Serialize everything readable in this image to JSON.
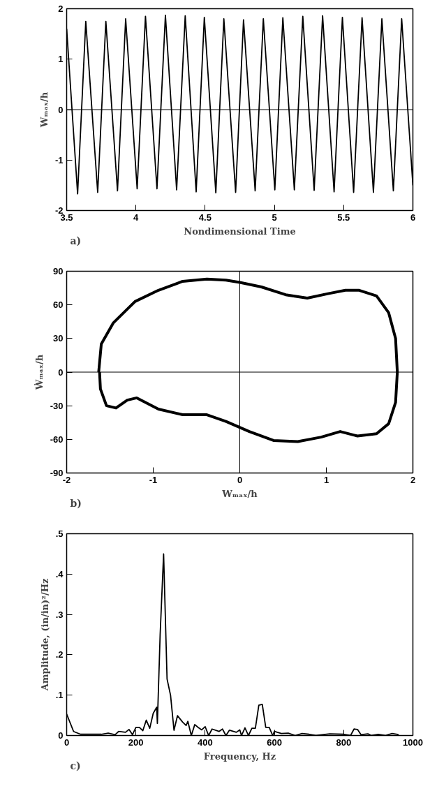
{
  "chart_data": [
    {
      "type": "line",
      "xlabel": "Nondimensional Time",
      "ylabel": "Wₘₐₓ/h",
      "xlim": [
        3.5,
        6
      ],
      "ylim": [
        -2,
        2
      ],
      "xticks": [
        3.5,
        4,
        4.5,
        5,
        5.5,
        6
      ],
      "yticks": [
        -2,
        -1,
        0,
        1,
        2
      ],
      "annotations": [
        "a)"
      ],
      "ref_lines": [
        {
          "axis": "y",
          "value": 0
        }
      ],
      "series": [
        {
          "color": "#000000",
          "x": [
            3.5,
            3.579,
            3.638,
            3.724,
            3.783,
            3.867,
            3.926,
            4.009,
            4.069,
            4.152,
            4.213,
            4.294,
            4.356,
            4.435,
            4.494,
            4.577,
            4.635,
            4.72,
            4.777,
            4.861,
            4.92,
            5.003,
            5.061,
            5.144,
            5.205,
            5.287,
            5.348,
            5.431,
            5.491,
            5.572,
            5.633,
            5.715,
            5.776,
            5.859,
            5.919,
            6
          ],
          "values": [
            1.6,
            -1.67,
            1.75,
            -1.64,
            1.75,
            -1.61,
            1.8,
            -1.57,
            1.85,
            -1.57,
            1.87,
            -1.59,
            1.86,
            -1.63,
            1.83,
            -1.65,
            1.8,
            -1.64,
            1.78,
            -1.61,
            1.8,
            -1.59,
            1.82,
            -1.59,
            1.85,
            -1.6,
            1.86,
            -1.63,
            1.83,
            -1.64,
            1.82,
            -1.64,
            1.8,
            -1.61,
            1.8,
            -1.5
          ]
        }
      ]
    },
    {
      "type": "line",
      "xlabel": "Wₘₐₓ/h",
      "ylabel": "Ẇₘₐₓ/h",
      "xlim": [
        -2,
        2
      ],
      "ylim": [
        -90,
        90
      ],
      "xticks": [
        -2,
        -1,
        0,
        1,
        2
      ],
      "yticks": [
        -90,
        -60,
        -30,
        0,
        30,
        60,
        90
      ],
      "annotations": [
        "b)"
      ],
      "ref_lines": [
        {
          "axis": "x",
          "value": 0
        },
        {
          "axis": "y",
          "value": 0
        }
      ],
      "series": [
        {
          "color": "#000000",
          "x": [
            -1.63,
            -1.6,
            -1.46,
            -1.21,
            -0.94,
            -0.66,
            -0.38,
            -0.16,
            0,
            0.25,
            0.53,
            0.78,
            1.02,
            1.22,
            1.38,
            1.58,
            1.72,
            1.8,
            1.82,
            1.8,
            1.72,
            1.58,
            1.36,
            1.16,
            0.94,
            0.67,
            0.39,
            0.11,
            -0.16,
            -0.38,
            -0.66,
            -0.94,
            -1.19,
            -1.3,
            -1.43,
            -1.54,
            -1.61,
            -1.62
          ],
          "values": [
            0,
            25,
            44,
            63,
            73,
            81,
            83,
            82,
            80,
            76,
            69,
            66,
            70,
            73,
            73,
            68,
            53,
            30,
            0,
            -27,
            -46,
            -55,
            -57,
            -53,
            -58,
            -62,
            -61,
            -53,
            -44,
            -38,
            -38,
            -33,
            -23,
            -25,
            -32,
            -30,
            -15,
            0
          ]
        }
      ]
    },
    {
      "type": "line",
      "xlabel": "Frequency, Hz",
      "ylabel": "Amplitude, (in/in)²/Hz",
      "xlim": [
        0,
        1000
      ],
      "ylim": [
        0,
        0.5
      ],
      "xticks": [
        0,
        200,
        400,
        600,
        800,
        1000
      ],
      "yticks": [
        0,
        {
          "value": 0.1,
          "label": ".1"
        },
        {
          "value": 0.2,
          "label": ".2"
        },
        {
          "value": 0.3,
          "label": ".3"
        },
        {
          "value": 0.4,
          "label": ".4"
        },
        {
          "value": 0.5,
          "label": ".5"
        }
      ],
      "annotations": [
        "c)"
      ],
      "series": [
        {
          "color": "#000000",
          "x": [
            0,
            20,
            40,
            100,
            120,
            140,
            150,
            170,
            180,
            190,
            200,
            210,
            220,
            230,
            240,
            250,
            260,
            262,
            270,
            280,
            290,
            300,
            310,
            320,
            335,
            345,
            350,
            360,
            370,
            380,
            390,
            400,
            410,
            420,
            440,
            450,
            460,
            470,
            490,
            500,
            505,
            515,
            525,
            535,
            545,
            555,
            565,
            575,
            585,
            595,
            600,
            620,
            640,
            660,
            680,
            700,
            720,
            760,
            800,
            820,
            830,
            840,
            850,
            870,
            880,
            900,
            920,
            940,
            955,
            960
          ],
          "values": [
            0.053,
            0.01,
            0.003,
            0.003,
            0.006,
            0.002,
            0.01,
            0.008,
            0.015,
            0.002,
            0.02,
            0.02,
            0.012,
            0.038,
            0.018,
            0.055,
            0.07,
            0.03,
            0.25,
            0.45,
            0.14,
            0.1,
            0.013,
            0.049,
            0.033,
            0.025,
            0.035,
            0,
            0.027,
            0.02,
            0.014,
            0.022,
            0,
            0.016,
            0.01,
            0.016,
            0,
            0.013,
            0.008,
            0.014,
            0,
            0.019,
            0,
            0.018,
            0.018,
            0.075,
            0.077,
            0.02,
            0.02,
            0,
            0.01,
            0.005,
            0.006,
            0,
            0.005,
            0.003,
            0,
            0.004,
            0.003,
            0,
            0.016,
            0.015,
            0.002,
            0.004,
            0,
            0.003,
            0,
            0.005,
            0.003,
            0
          ]
        }
      ]
    }
  ]
}
